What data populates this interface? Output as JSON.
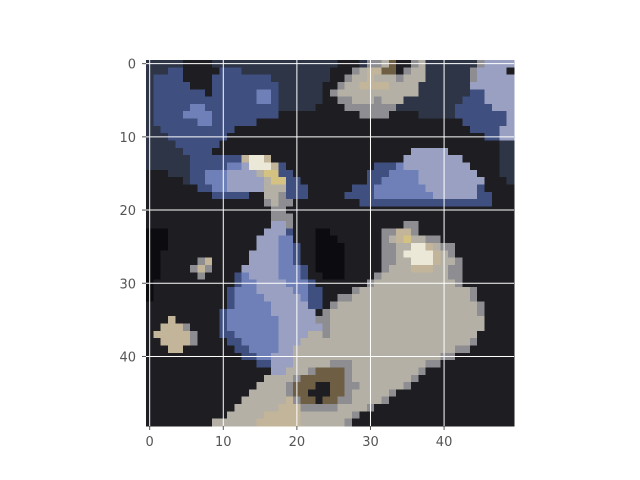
{
  "chart_data": {
    "type": "heatmap",
    "title": "",
    "xlabel": "",
    "ylabel": "",
    "shape": [
      50,
      50
    ],
    "xlim": [
      -0.5,
      49.5
    ],
    "ylim": [
      49.5,
      -0.5
    ],
    "origin": "upper",
    "grid": true,
    "grid_color": "#ffffff",
    "xticks": [
      0,
      10,
      20,
      30,
      40
    ],
    "yticks": [
      0,
      10,
      20,
      30,
      40
    ],
    "xtick_labels": [
      "0",
      "10",
      "20",
      "30",
      "40"
    ],
    "ytick_labels": [
      "0",
      "10",
      "20",
      "30",
      "40"
    ],
    "palette": {
      "d": "#0c0c10",
      "k": "#1e1e22",
      "n": "#2e3546",
      "b": "#3f4f80",
      "B": "#6f7fb8",
      "l": "#9aa0c2",
      "g": "#8e8e92",
      "s": "#b4b0a6",
      "t": "#c2b59a",
      "w": "#ece8d8",
      "y": "#d4c282",
      "o": "#6e5e44"
    },
    "approx_pixels": [
      "nnnnnkkkknnnnnnnnnnnnnnnnnkkknggsokkgsnnnnnnngllll",
      "nnnbbkkkkkbbbnnnnnnnnnnnnkkkgsttookgssnnnnnngllll",
      "nbbbbkkkkbbbbbbbbnnnnnnnnkkgsstsssgsssnnnnnnglllll",
      "nbbbbbkkkbbbbbbbbbnnnnnnkkgssttttssssnnnnnnnllllll",
      "nbbbbbbbkbbbbbbBBbnnnnnnkgsssssssssssnnnnnnnbbllll",
      "nbbbbbbbbbbbbbbBBbnnnnnnkkggsssgsssnnnnnnnnbbbllll",
      "nbbbbbBBbbbbbbbbbbnnnnnkkkkgggggggnnnnnnnnbbbbblll",
      "nbbbbBBBBbbbbbbbbbkkkkkkkkkkkggggkkkknnnnnbbbbbbbll",
      "nbbbbbbBBbbbbbbkkkkkkkkkkkkkkkkkkkkkkkkkkkkbbbbbbll",
      "nnbbbbbbbbbbkkkkkkkkkkkkkkkkkkkkkkkkkkkkkkkkbbbbll",
      "nnnbbbbbbbbkkkkkkkkkkkkkkkkkkkkkkkkkkkkkkkkkkkbbll",
      "nnnnbbbbbbkkkkkkkkkkkkkkkkkkkkkkkkkkkkkkkkkkkkkknn",
      "nnnnnbbbbkkkkkkkkkkkkkkkkkkkkkkkkkkklllllkkkkkkknn",
      "nnnnnnbbbbbbbtwwtkkkkkkkkkkkkkkkkkkllllllllkkkkknn",
      "nnnnnnbbbbbBBlwwwtbkkkkkkkkkkkkbbbBlllllllllkkkknn",
      "kkknnnbbBBBllllsyybbkkkkkkkkkkbbbBBBBllllllllkkknn",
      "kkkkknbbBBBlllllsyybbkkkkkkkkkbbBBBBBlllllllllkkkn",
      "kkkkkkkbbBBlllllsssbbbkkkkkkbbbBBBBBBBlllllllbkkkk",
      "kkkkkkkkkbbbbbkkssgbbbkkkkkbbbbBBBBBBBBllllllbbkkk",
      "kkkkkkkkkkkkkkkkgsggkkkkkkkkkbbbbbbbbbbbbbbbbbbkkk",
      "kkkkkkkkkkkkkkkkkggkkkkkkkkkkkkkkkkkkkkkkkkkkkkkkk",
      "kkkkkkkkkkkkkkkkkgggkkkkkkkkkkkkkkkkkkkkkkkkkkkkkk",
      "kkkkkkkkkkkkkkkkkllgkkkkkkkkkkkkkkkggkkkkkkkkkkkkk",
      "dddkkkkkkkkkkkkklllbkkkddkkkkkkkggttgkkkkkkkkkkkkk",
      "dddkkkkkkkkkkkklllBBkkkdddkkkkkkgstyssggkkkkkkkkkk",
      "dddkkkkkkkkkkkklllBBbkkddddkkkkkggsswwtsggkkkkkkkk",
      "ddkkkkkkkkkkkkllllBBbkkddddkkkkkggswwwwtsgkkkkkkkk",
      "ddkkkkkgtkkkkkllllBBbkkddddkkkkkggsswwwtssgkkkkkkk",
      "ddkkkkgtgkkkklllllBBBbkddddkkkkkgssstttssggkkkkkkk",
      "ddkkkkkgkkkkbBllllBBBbkkdddkkkkgsssssssssggkkkkkkk",
      "dkkkkkkkkkkkbBBllllBBBbkkkkkkkgsssssssssssgkkkkkkk",
      "dkkkkkkkkkkbBBBlllllBBbbkkkkgsssssssssssssssgkkkkk",
      "dkkkkkkkkkkbBBBBlllllBbbkkggssssssssssssssssgkkkkk",
      "kkkkkkkkkkkbBBBBBlllllbbkgsssssssssssssssssssgkkkk",
      "kkkkkkkkkkbBBBBBBllllllkgssssssssssssssssssssgkkkk",
      "kkktkkkkkkbBBBBBBBlllllggssssssssssssssssssssskkkk",
      "kktttgkkkkbBBBBBBBllllllgssssssssssssssssssssskkkk",
      "ktttttgkkkbbBBBBBBllllssgsssssssssssssssssssskkkkk",
      "kkttttgkkkkbbBBBBBlllsssssssssssssssssssssssgkkkkk",
      "kkkttkkkkkkkbbBBBBllssssssssssssssssssssssggkkkkkk",
      "kkkkkkkkkkkkkbbBBlllssssssssssssssssssssggkkkkkkkk",
      "kkkkkkkkkkkkkkkbblllsssssgggssssssssssggkkkkkkkkkk",
      "kkkkkkkkkkkkkkkkkllsssgoooogsssssssssgkkkkkkkkkkkk",
      "kkkkkkkkkkkkkkkkssssgoooooogssssssssgkkkkkkkkkkkkk",
      "kkkkkkkkkkkkkkkssssgoookkooggssssssgkkkkkkkkkkkkkk",
      "kkkkkkkkkkkkkksssssgookkkoogsssssgkkkkkkkkkkkkkkkk",
      "kkkkkkkkkkkkksssssstgookooggssssgkkkkkkkkkkkkkkkkk",
      "kkkkkkkkkkkksssssstttgggggssssgkkkkkkkkkkkkkkkkkkk",
      "kkkkkkkkkkkssssstttttsssssssgkkkkkkkkkkkkkkkkkkkkk",
      "kkkkkkkkkssssssttttttssssssgkkkkkkkkkkkkkkkkkkkkkk"
    ]
  }
}
